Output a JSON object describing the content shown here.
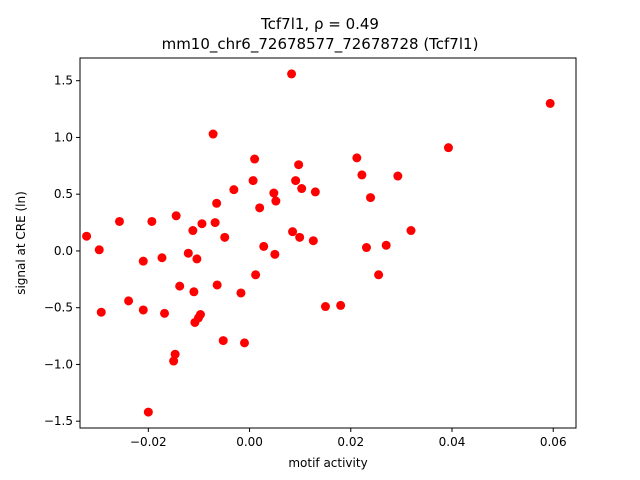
{
  "chart_data": {
    "type": "scatter",
    "title_line1": "Tcf7l1, ρ = 0.49",
    "title_line2": "mm10_chr6_72678577_72678728 (Tcf7l1)",
    "xlabel": "motif activity",
    "ylabel": "signal at CRE (ln)",
    "xlim": [
      -0.0335,
      0.0645
    ],
    "ylim": [
      -1.56,
      1.7
    ],
    "xticks": [
      -0.02,
      0.0,
      0.02,
      0.04,
      0.06
    ],
    "xtick_labels": [
      "−0.02",
      "0.00",
      "0.02",
      "0.04",
      "0.06"
    ],
    "yticks": [
      -1.5,
      -1.0,
      -0.5,
      0.0,
      0.5,
      1.0,
      1.5
    ],
    "ytick_labels": [
      "−1.5",
      "−1.0",
      "−0.5",
      "0.0",
      "0.5",
      "1.0",
      "1.5"
    ],
    "marker_color": "#ff0000",
    "grid": false,
    "legend": "none",
    "series": [
      {
        "points": [
          [
            -0.0322,
            0.13
          ],
          [
            -0.0297,
            0.01
          ],
          [
            -0.0293,
            -0.54
          ],
          [
            -0.0257,
            0.26
          ],
          [
            -0.0239,
            -0.44
          ],
          [
            -0.021,
            -0.09
          ],
          [
            -0.021,
            -0.52
          ],
          [
            -0.02,
            -1.42
          ],
          [
            -0.0193,
            0.26
          ],
          [
            -0.0173,
            -0.06
          ],
          [
            -0.0168,
            -0.55
          ],
          [
            -0.015,
            -0.97
          ],
          [
            -0.0147,
            -0.91
          ],
          [
            -0.0145,
            0.31
          ],
          [
            -0.0138,
            -0.31
          ],
          [
            -0.0121,
            -0.02
          ],
          [
            -0.0112,
            0.18
          ],
          [
            -0.011,
            -0.36
          ],
          [
            -0.0108,
            -0.63
          ],
          [
            -0.0104,
            -0.07
          ],
          [
            -0.0101,
            -0.59
          ],
          [
            -0.0097,
            -0.56
          ],
          [
            -0.0094,
            0.24
          ],
          [
            -0.0072,
            1.03
          ],
          [
            -0.0068,
            0.25
          ],
          [
            -0.0065,
            0.42
          ],
          [
            -0.0064,
            -0.3
          ],
          [
            -0.0052,
            -0.79
          ],
          [
            -0.0049,
            0.12
          ],
          [
            -0.0031,
            0.54
          ],
          [
            -0.0017,
            -0.37
          ],
          [
            -0.001,
            -0.81
          ],
          [
            0.0007,
            0.62
          ],
          [
            0.001,
            0.81
          ],
          [
            0.0012,
            -0.21
          ],
          [
            0.002,
            0.38
          ],
          [
            0.0028,
            0.04
          ],
          [
            0.0048,
            0.51
          ],
          [
            0.005,
            -0.03
          ],
          [
            0.0052,
            0.44
          ],
          [
            0.0083,
            1.56
          ],
          [
            0.0085,
            0.17
          ],
          [
            0.0091,
            0.62
          ],
          [
            0.0097,
            0.76
          ],
          [
            0.0099,
            0.12
          ],
          [
            0.0103,
            0.55
          ],
          [
            0.0126,
            0.09
          ],
          [
            0.013,
            0.52
          ],
          [
            0.015,
            -0.49
          ],
          [
            0.018,
            -0.48
          ],
          [
            0.0212,
            0.82
          ],
          [
            0.0222,
            0.67
          ],
          [
            0.0231,
            0.03
          ],
          [
            0.0239,
            0.47
          ],
          [
            0.0255,
            -0.21
          ],
          [
            0.027,
            0.05
          ],
          [
            0.0293,
            0.66
          ],
          [
            0.0319,
            0.18
          ],
          [
            0.0393,
            0.91
          ],
          [
            0.0594,
            1.3
          ]
        ]
      }
    ]
  }
}
